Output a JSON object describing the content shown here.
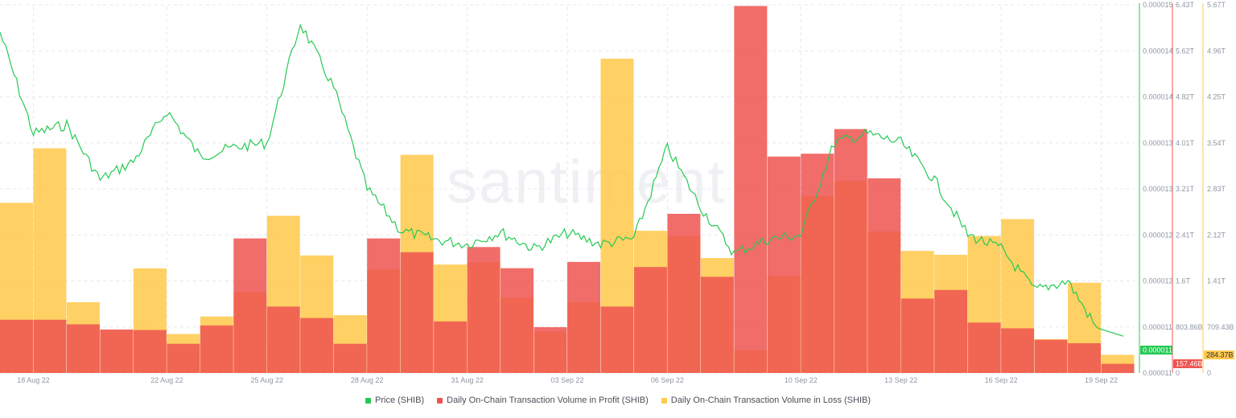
{
  "watermark": "santiment",
  "colors": {
    "price": "#26c953",
    "profit": "#ef5350",
    "loss": "#ffc94d",
    "grid": "#e6e8ec",
    "text": "#8f96a3"
  },
  "legend": [
    {
      "label": "Price (SHIB)",
      "color": "#26c953"
    },
    {
      "label": "Daily On-Chain Transaction Volume in Profit (SHIB)",
      "color": "#ef5350"
    },
    {
      "label": "Daily On-Chain Transaction Volume in Loss (SHIB)",
      "color": "#ffc94d"
    }
  ],
  "chart_data": {
    "type": "bar",
    "x_ticks": [
      "18 Aug 22",
      "22 Aug 22",
      "25 Aug 22",
      "28 Aug 22",
      "31 Aug 22",
      "03 Sep 22",
      "06 Sep 22",
      "10 Sep 22",
      "13 Sep 22",
      "16 Sep 22",
      "19 Sep 22"
    ],
    "price_axis": {
      "ticks": [
        "0.000015",
        "0.000014",
        "0.000014",
        "0.000013",
        "0.000013",
        "0.000012",
        "0.000012",
        "0.000011",
        "0.000011"
      ],
      "current": "0.000011",
      "range": [
        1.11e-05,
        1.51e-05
      ]
    },
    "profit_axis": {
      "ticks": [
        "6.43T",
        "5.62T",
        "4.82T",
        "4.01T",
        "3.21T",
        "2.41T",
        "1.6T",
        "803.86B",
        "0"
      ],
      "current": "157.46B",
      "max": 6.43
    },
    "loss_axis": {
      "ticks": [
        "5.67T",
        "4.96T",
        "4.25T",
        "3.54T",
        "2.83T",
        "2.12T",
        "1.41T",
        "709.43B",
        "0"
      ],
      "current": "284.37B",
      "max": 5.67
    },
    "dates": [
      "17 Aug",
      "18 Aug",
      "19 Aug",
      "20 Aug",
      "21 Aug",
      "22 Aug",
      "23 Aug",
      "24 Aug",
      "25 Aug",
      "26 Aug",
      "27 Aug",
      "28 Aug",
      "29 Aug",
      "30 Aug",
      "31 Aug",
      "01 Sep",
      "02 Sep",
      "03 Sep",
      "04 Sep",
      "05 Sep",
      "06 Sep",
      "07 Sep",
      "08 Sep",
      "09 Sep",
      "10 Sep",
      "11 Sep",
      "12 Sep",
      "13 Sep",
      "14 Sep",
      "15 Sep",
      "16 Sep",
      "17 Sep",
      "18 Sep",
      "19 Sep"
    ],
    "series": [
      {
        "name": "Daily On-Chain Transaction Volume in Profit (SHIB)",
        "unit": "T",
        "values": [
          0.93,
          0.93,
          0.85,
          0.76,
          0.75,
          0.51,
          0.83,
          2.35,
          1.16,
          0.96,
          0.51,
          2.35,
          2.11,
          0.9,
          2.2,
          1.83,
          0.8,
          1.94,
          1.16,
          1.85,
          2.78,
          1.68,
          6.41,
          3.78,
          3.83,
          4.26,
          3.4,
          1.3,
          1.45,
          0.88,
          0.78,
          0.58,
          0.52,
          0.16
        ]
      },
      {
        "name": "Daily On-Chain Transaction Volume in Loss (SHIB)",
        "unit": "T",
        "values": [
          2.62,
          3.46,
          1.09,
          0.66,
          1.61,
          0.6,
          0.87,
          1.25,
          2.42,
          1.81,
          0.89,
          1.6,
          3.36,
          1.67,
          1.71,
          1.16,
          0.64,
          1.09,
          4.84,
          2.19,
          2.11,
          1.77,
          0.35,
          1.5,
          2.73,
          2.96,
          2.18,
          1.88,
          1.82,
          2.11,
          2.37,
          0.52,
          1.39,
          0.28
        ]
      },
      {
        "name": "Price (SHIB)",
        "unit": "SHIB",
        "values": [
          1.48e-05,
          1.37e-05,
          1.38e-05,
          1.32e-05,
          1.34e-05,
          1.395e-05,
          1.345e-05,
          1.355e-05,
          1.36e-05,
          1.49e-05,
          1.42e-05,
          1.31e-05,
          1.265e-05,
          1.255e-05,
          1.25e-05,
          1.263e-05,
          1.245e-05,
          1.262e-05,
          1.25e-05,
          1.256e-05,
          1.355e-05,
          1.29e-05,
          1.24e-05,
          1.255e-05,
          1.26e-05,
          1.36e-05,
          1.37e-05,
          1.36e-05,
          1.32e-05,
          1.26e-05,
          1.245e-05,
          1.2e-05,
          1.21e-05,
          1.15e-05
        ]
      }
    ]
  }
}
